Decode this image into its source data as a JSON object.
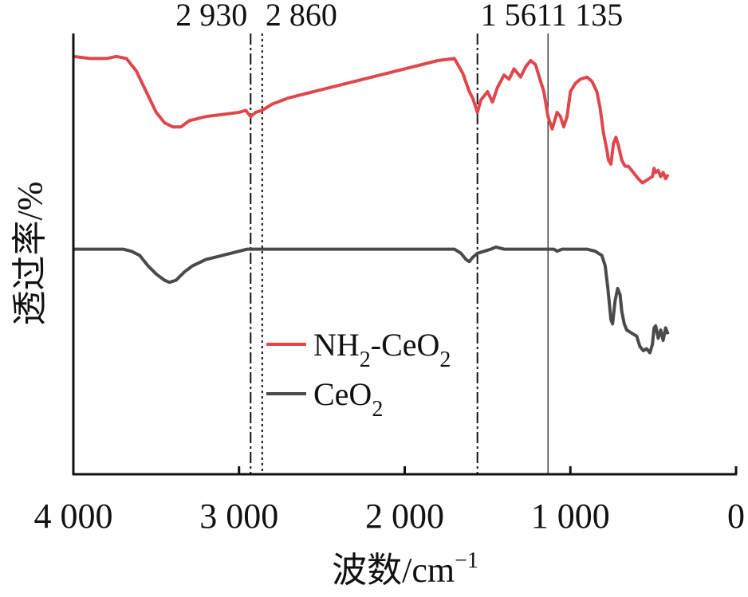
{
  "chart_data": {
    "type": "line",
    "xlabel": "波数/cm",
    "xlabel_sup": "−1",
    "ylabel": "透过率/%",
    "xlim": [
      4000,
      0
    ],
    "x_reversed": true,
    "x_ticks": [
      4000,
      3000,
      2000,
      1000,
      0
    ],
    "x_tick_labels": [
      "4 000",
      "3 000",
      "2 000",
      "1 000",
      "0"
    ],
    "y_tick_labels": false,
    "grid": false,
    "legend_placement": "center-left",
    "reference_lines": [
      {
        "x": 2930,
        "label": "2 930",
        "style": "dashdot"
      },
      {
        "x": 2860,
        "label": "2 860",
        "style": "dotted"
      },
      {
        "x": 1561,
        "label": "1 561",
        "style": "dashdot"
      },
      {
        "x": 1135,
        "label": "1 135",
        "style": "solid"
      }
    ],
    "series": [
      {
        "name": "NH2-CeO2",
        "legend_main": "NH",
        "legend_sub1": "2",
        "legend_mid": "-CeO",
        "legend_sub2": "2",
        "color": "#e0474c",
        "points": [
          [
            4000,
            97
          ],
          [
            3900,
            96
          ],
          [
            3800,
            96
          ],
          [
            3740,
            97
          ],
          [
            3680,
            96
          ],
          [
            3620,
            90
          ],
          [
            3560,
            80
          ],
          [
            3500,
            70
          ],
          [
            3450,
            65
          ],
          [
            3400,
            63
          ],
          [
            3350,
            63
          ],
          [
            3300,
            66
          ],
          [
            3250,
            67
          ],
          [
            3200,
            68
          ],
          [
            3100,
            69
          ],
          [
            3000,
            70
          ],
          [
            2960,
            71
          ],
          [
            2930,
            68
          ],
          [
            2900,
            70
          ],
          [
            2860,
            71
          ],
          [
            2800,
            74
          ],
          [
            2700,
            77
          ],
          [
            2600,
            79
          ],
          [
            2400,
            83
          ],
          [
            2200,
            87
          ],
          [
            2000,
            91
          ],
          [
            1800,
            95
          ],
          [
            1700,
            96
          ],
          [
            1650,
            89
          ],
          [
            1610,
            80
          ],
          [
            1590,
            77
          ],
          [
            1561,
            70
          ],
          [
            1540,
            76
          ],
          [
            1500,
            80
          ],
          [
            1470,
            75
          ],
          [
            1440,
            82
          ],
          [
            1400,
            88
          ],
          [
            1370,
            86
          ],
          [
            1340,
            91
          ],
          [
            1300,
            87
          ],
          [
            1270,
            92
          ],
          [
            1240,
            95
          ],
          [
            1210,
            93
          ],
          [
            1180,
            85
          ],
          [
            1160,
            80
          ],
          [
            1135,
            68
          ],
          [
            1110,
            62
          ],
          [
            1080,
            70
          ],
          [
            1060,
            68
          ],
          [
            1040,
            63
          ],
          [
            1020,
            68
          ],
          [
            1000,
            80
          ],
          [
            970,
            84
          ],
          [
            940,
            86
          ],
          [
            900,
            87
          ],
          [
            870,
            85
          ],
          [
            840,
            80
          ],
          [
            820,
            72
          ],
          [
            800,
            60
          ],
          [
            780,
            52
          ],
          [
            770,
            47
          ],
          [
            755,
            45
          ],
          [
            740,
            55
          ],
          [
            725,
            58
          ],
          [
            710,
            54
          ],
          [
            690,
            47
          ],
          [
            670,
            44
          ],
          [
            650,
            44
          ],
          [
            620,
            41
          ],
          [
            590,
            38
          ],
          [
            565,
            36
          ],
          [
            545,
            37
          ],
          [
            525,
            38
          ],
          [
            505,
            39
          ],
          [
            495,
            43
          ],
          [
            485,
            41
          ],
          [
            470,
            42
          ],
          [
            455,
            39
          ],
          [
            440,
            41
          ],
          [
            425,
            38
          ],
          [
            410,
            40
          ]
        ]
      },
      {
        "name": "CeO2",
        "legend_main": "CeO",
        "legend_sub1": "2",
        "color": "#4a4a4a",
        "points": [
          [
            4000,
            4
          ],
          [
            3900,
            4
          ],
          [
            3800,
            4
          ],
          [
            3700,
            4
          ],
          [
            3650,
            3
          ],
          [
            3600,
            1
          ],
          [
            3550,
            -4
          ],
          [
            3500,
            -8
          ],
          [
            3450,
            -11
          ],
          [
            3420,
            -12
          ],
          [
            3380,
            -11
          ],
          [
            3330,
            -7
          ],
          [
            3280,
            -4
          ],
          [
            3200,
            -1
          ],
          [
            3100,
            1
          ],
          [
            3000,
            3
          ],
          [
            2950,
            4
          ],
          [
            2900,
            4
          ],
          [
            2800,
            4
          ],
          [
            2600,
            4
          ],
          [
            2400,
            4
          ],
          [
            2200,
            4
          ],
          [
            2000,
            4
          ],
          [
            1800,
            4
          ],
          [
            1700,
            4
          ],
          [
            1660,
            2
          ],
          [
            1630,
            -1
          ],
          [
            1610,
            -2
          ],
          [
            1590,
            0
          ],
          [
            1561,
            2
          ],
          [
            1520,
            3
          ],
          [
            1480,
            4
          ],
          [
            1450,
            5
          ],
          [
            1400,
            4
          ],
          [
            1300,
            4
          ],
          [
            1200,
            4
          ],
          [
            1100,
            4
          ],
          [
            1080,
            3
          ],
          [
            1050,
            4
          ],
          [
            1000,
            4
          ],
          [
            950,
            4
          ],
          [
            900,
            4
          ],
          [
            850,
            3
          ],
          [
            810,
            1
          ],
          [
            790,
            -4
          ],
          [
            775,
            -14
          ],
          [
            765,
            -22
          ],
          [
            755,
            -30
          ],
          [
            745,
            -32
          ],
          [
            730,
            -21
          ],
          [
            715,
            -15
          ],
          [
            700,
            -18
          ],
          [
            690,
            -26
          ],
          [
            675,
            -32
          ],
          [
            660,
            -35
          ],
          [
            640,
            -36
          ],
          [
            620,
            -37
          ],
          [
            600,
            -38
          ],
          [
            580,
            -43
          ],
          [
            560,
            -45
          ],
          [
            540,
            -44
          ],
          [
            520,
            -46
          ],
          [
            505,
            -42
          ],
          [
            495,
            -34
          ],
          [
            485,
            -33
          ],
          [
            470,
            -39
          ],
          [
            455,
            -35
          ],
          [
            440,
            -40
          ],
          [
            425,
            -34
          ],
          [
            410,
            -37
          ]
        ]
      }
    ]
  }
}
